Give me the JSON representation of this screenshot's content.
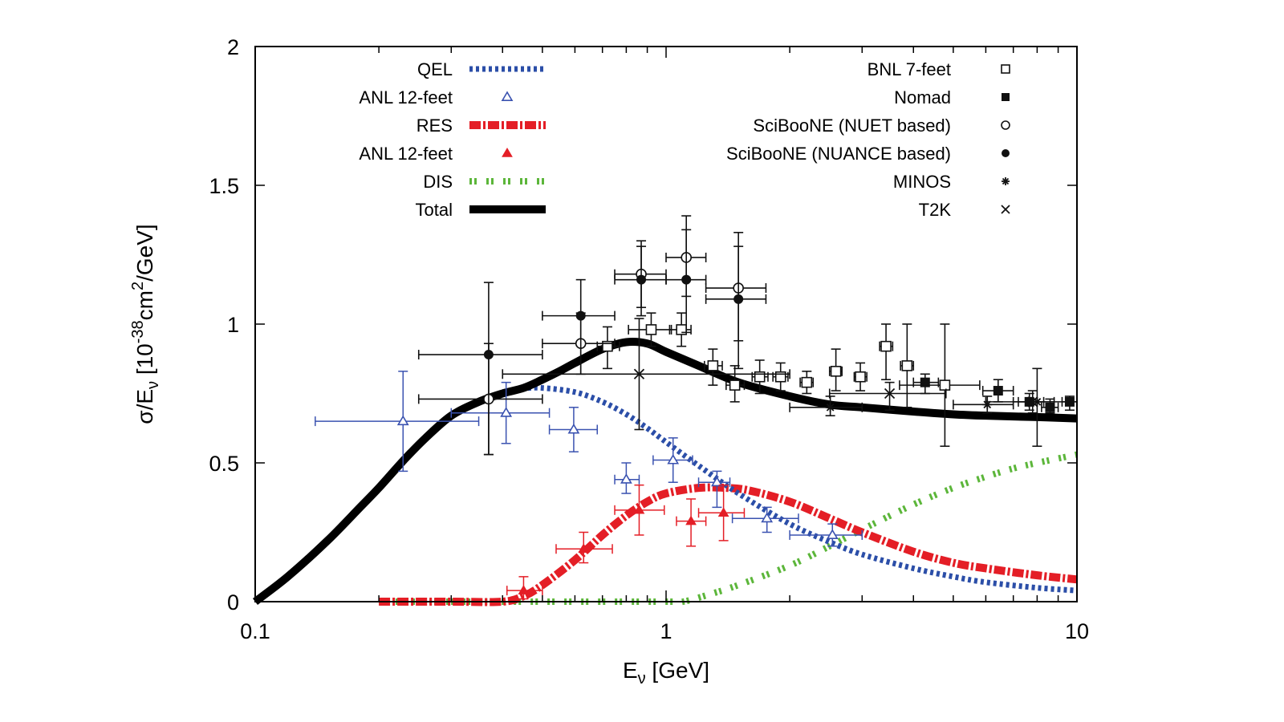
{
  "chart_data": {
    "type": "scatter",
    "title": "",
    "xlabel": "E_ν [GeV]",
    "xlabel_main": "E",
    "xlabel_sub": "ν",
    "xlabel_rest": " [GeV]",
    "ylabel": "σ/E_ν [10^-38 cm^2/GeV]",
    "ylabel_parts": {
      "sigma": "σ/E",
      "sub": "ν",
      "bracket": " [10",
      "exp": "-38",
      "cm": "cm",
      "cmexp": "2",
      "tail": "/GeV]"
    },
    "xscale": "log",
    "xlim": [
      0.1,
      10
    ],
    "ylim": [
      0,
      2
    ],
    "grid": false,
    "x_ticks": [
      {
        "value": 0.1,
        "label": "0.1"
      },
      {
        "value": 1,
        "label": "1"
      },
      {
        "value": 10,
        "label": "10"
      }
    ],
    "y_ticks": [
      {
        "value": 0,
        "label": "0"
      },
      {
        "value": 0.5,
        "label": "0.5"
      },
      {
        "value": 1,
        "label": "1"
      },
      {
        "value": 1.5,
        "label": "1.5"
      },
      {
        "value": 2,
        "label": "2"
      }
    ],
    "legend_left": {
      "placement": "top-left",
      "entries": [
        {
          "label": "QEL",
          "style": "blue-dotted-line"
        },
        {
          "label": "ANL 12-feet",
          "style": "blue-open-triangle"
        },
        {
          "label": "RES",
          "style": "red-dashdot-line"
        },
        {
          "label": "ANL 12-feet",
          "style": "red-filled-triangle"
        },
        {
          "label": "DIS",
          "style": "green-dashed-line"
        },
        {
          "label": "Total",
          "style": "black-solid-line"
        }
      ]
    },
    "legend_right": {
      "placement": "top-right",
      "entries": [
        {
          "label": "BNL 7-feet",
          "style": "open-square"
        },
        {
          "label": "Nomad",
          "style": "filled-square"
        },
        {
          "label": "SciBooNE (NUET based)",
          "style": "open-circle"
        },
        {
          "label": "SciBooNE (NUANCE based)",
          "style": "filled-circle"
        },
        {
          "label": "MINOS",
          "style": "asterisk"
        },
        {
          "label": "T2K",
          "style": "cross"
        }
      ]
    },
    "colors": {
      "qel": "#2b4ea8",
      "res": "#e41e26",
      "dis": "#5cb63a",
      "total": "#000000",
      "data_black": "#111111",
      "anl_blue": "#3a52b0",
      "anl_red": "#e41e26"
    },
    "curves": [
      {
        "name": "QEL",
        "x": [
          0.4,
          0.45,
          0.5,
          0.6,
          0.7,
          0.8,
          0.9,
          1.0,
          1.2,
          1.5,
          2.0,
          2.5,
          3.0,
          4.0,
          5.0,
          6.0,
          8.0,
          10.0
        ],
        "y": [
          0.755,
          0.768,
          0.77,
          0.755,
          0.72,
          0.675,
          0.625,
          0.575,
          0.49,
          0.39,
          0.28,
          0.215,
          0.17,
          0.12,
          0.09,
          0.07,
          0.05,
          0.04
        ]
      },
      {
        "name": "RES",
        "x": [
          0.2,
          0.3,
          0.4,
          0.45,
          0.5,
          0.6,
          0.7,
          0.8,
          0.9,
          1.0,
          1.2,
          1.4,
          1.6,
          2.0,
          2.5,
          3.0,
          4.0,
          5.0,
          6.0,
          8.0,
          10.0
        ],
        "y": [
          0,
          0,
          0,
          0.02,
          0.06,
          0.15,
          0.24,
          0.31,
          0.36,
          0.39,
          0.41,
          0.41,
          0.4,
          0.36,
          0.3,
          0.25,
          0.18,
          0.14,
          0.12,
          0.095,
          0.08
        ]
      },
      {
        "name": "DIS",
        "x": [
          0.2,
          0.5,
          1.0,
          1.1,
          1.3,
          1.5,
          2.0,
          2.5,
          3.0,
          4.0,
          5.0,
          6.0,
          7.0,
          8.0,
          10.0
        ],
        "y": [
          0,
          0,
          0,
          0,
          0.03,
          0.06,
          0.13,
          0.2,
          0.26,
          0.35,
          0.41,
          0.45,
          0.48,
          0.5,
          0.53
        ]
      },
      {
        "name": "Total",
        "x": [
          0.1,
          0.12,
          0.15,
          0.18,
          0.2,
          0.23,
          0.26,
          0.3,
          0.35,
          0.4,
          0.45,
          0.5,
          0.55,
          0.6,
          0.7,
          0.8,
          0.9,
          1.0,
          1.2,
          1.5,
          2.0,
          2.5,
          3.0,
          4.0,
          5.0,
          6.0,
          8.0,
          10.0
        ],
        "y": [
          0,
          0.09,
          0.22,
          0.34,
          0.41,
          0.51,
          0.59,
          0.67,
          0.72,
          0.75,
          0.77,
          0.8,
          0.83,
          0.86,
          0.91,
          0.935,
          0.93,
          0.9,
          0.85,
          0.79,
          0.74,
          0.71,
          0.7,
          0.685,
          0.675,
          0.67,
          0.665,
          0.66
        ]
      }
    ],
    "datasets": [
      {
        "name": "ANL 12-feet (QEL)",
        "marker": "open-triangle",
        "color": "#3a52b0",
        "points": [
          {
            "x": 0.229,
            "y": 0.65,
            "xlo": 0.14,
            "xhi": 0.35,
            "ylo": 0.47,
            "yhi": 0.83
          },
          {
            "x": 0.408,
            "y": 0.68,
            "xlo": 0.3,
            "xhi": 0.52,
            "ylo": 0.57,
            "yhi": 0.79
          },
          {
            "x": 0.596,
            "y": 0.62,
            "xlo": 0.52,
            "xhi": 0.68,
            "ylo": 0.54,
            "yhi": 0.7
          },
          {
            "x": 0.8,
            "y": 0.44,
            "xlo": 0.75,
            "xhi": 0.86,
            "ylo": 0.39,
            "yhi": 0.5
          },
          {
            "x": 1.04,
            "y": 0.51,
            "xlo": 0.93,
            "xhi": 1.16,
            "ylo": 0.43,
            "yhi": 0.59
          },
          {
            "x": 1.33,
            "y": 0.43,
            "xlo": 1.2,
            "xhi": 1.43,
            "ylo": 0.34,
            "yhi": 0.47
          },
          {
            "x": 1.76,
            "y": 0.3,
            "xlo": 1.45,
            "xhi": 2.1,
            "ylo": 0.25,
            "yhi": 0.34
          },
          {
            "x": 2.54,
            "y": 0.24,
            "xlo": 2.0,
            "xhi": 3.0,
            "ylo": 0.2,
            "yhi": 0.28
          }
        ]
      },
      {
        "name": "ANL 12-feet (RES)",
        "marker": "filled-triangle",
        "color": "#e41e26",
        "points": [
          {
            "x": 0.45,
            "y": 0.04,
            "xlo": 0.41,
            "xhi": 0.5,
            "ylo": 0.01,
            "yhi": 0.09
          },
          {
            "x": 0.63,
            "y": 0.19,
            "xlo": 0.54,
            "xhi": 0.74,
            "ylo": 0.14,
            "yhi": 0.25
          },
          {
            "x": 0.86,
            "y": 0.33,
            "xlo": 0.75,
            "xhi": 0.99,
            "ylo": 0.24,
            "yhi": 0.42
          },
          {
            "x": 1.15,
            "y": 0.29,
            "xlo": 1.06,
            "xhi": 1.25,
            "ylo": 0.2,
            "yhi": 0.37
          },
          {
            "x": 1.38,
            "y": 0.32,
            "xlo": 1.2,
            "xhi": 1.55,
            "ylo": 0.22,
            "yhi": 0.42
          }
        ]
      },
      {
        "name": "BNL 7-feet",
        "marker": "open-square",
        "color": "#111111",
        "points": [
          {
            "x": 0.72,
            "y": 0.92,
            "xlo": 0.68,
            "xhi": 0.77,
            "ylo": 0.84,
            "yhi": 0.99
          },
          {
            "x": 0.92,
            "y": 0.98,
            "xlo": 0.81,
            "xhi": 1.03,
            "ylo": 0.92,
            "yhi": 1.04
          },
          {
            "x": 1.09,
            "y": 0.98,
            "xlo": 1.02,
            "xhi": 1.15,
            "ylo": 0.92,
            "yhi": 1.04
          },
          {
            "x": 1.3,
            "y": 0.85,
            "xlo": 1.24,
            "xhi": 1.37,
            "ylo": 0.78,
            "yhi": 0.91
          },
          {
            "x": 1.47,
            "y": 0.78,
            "xlo": 1.4,
            "xhi": 1.55,
            "ylo": 0.72,
            "yhi": 0.85
          },
          {
            "x": 1.69,
            "y": 0.81,
            "xlo": 1.62,
            "xhi": 1.77,
            "ylo": 0.75,
            "yhi": 0.87
          },
          {
            "x": 1.9,
            "y": 0.81,
            "xlo": 1.82,
            "xhi": 1.98,
            "ylo": 0.76,
            "yhi": 0.86
          },
          {
            "x": 2.2,
            "y": 0.79,
            "xlo": 2.12,
            "xhi": 2.28,
            "ylo": 0.75,
            "yhi": 0.83
          },
          {
            "x": 2.59,
            "y": 0.83,
            "xlo": 2.5,
            "xhi": 2.68,
            "ylo": 0.76,
            "yhi": 0.91
          },
          {
            "x": 2.97,
            "y": 0.81,
            "xlo": 2.87,
            "xhi": 3.08,
            "ylo": 0.76,
            "yhi": 0.86
          },
          {
            "x": 3.43,
            "y": 0.92,
            "xlo": 3.31,
            "xhi": 3.56,
            "ylo": 0.8,
            "yhi": 1.0
          },
          {
            "x": 3.86,
            "y": 0.85,
            "xlo": 3.72,
            "xhi": 4.0,
            "ylo": 0.7,
            "yhi": 1.0
          },
          {
            "x": 4.77,
            "y": 0.78,
            "xlo": 3.7,
            "xhi": 5.8,
            "ylo": 0.56,
            "yhi": 1.0
          }
        ]
      },
      {
        "name": "Nomad",
        "marker": "filled-square",
        "color": "#111111",
        "points": [
          {
            "x": 4.27,
            "y": 0.79,
            "xlo": 4.0,
            "xhi": 4.6,
            "ylo": 0.75,
            "yhi": 0.82
          },
          {
            "x": 6.43,
            "y": 0.76,
            "xlo": 5.9,
            "xhi": 7.0,
            "ylo": 0.72,
            "yhi": 0.8
          },
          {
            "x": 7.66,
            "y": 0.72,
            "xlo": 7.0,
            "xhi": 8.3,
            "ylo": 0.69,
            "yhi": 0.75
          },
          {
            "x": 8.6,
            "y": 0.7,
            "xlo": 8.2,
            "xhi": 9.0,
            "ylo": 0.68,
            "yhi": 0.73
          },
          {
            "x": 9.6,
            "y": 0.72,
            "xlo": 9.2,
            "xhi": 10.0,
            "ylo": 0.69,
            "yhi": 0.74
          }
        ]
      },
      {
        "name": "SciBooNE (NUET based)",
        "marker": "open-circle",
        "color": "#111111",
        "points": [
          {
            "x": 0.37,
            "y": 0.73,
            "xlo": 0.25,
            "xhi": 0.5,
            "ylo": 0.53,
            "yhi": 0.93
          },
          {
            "x": 0.62,
            "y": 0.93,
            "xlo": 0.5,
            "xhi": 0.75,
            "ylo": 0.82,
            "yhi": 1.04
          },
          {
            "x": 0.87,
            "y": 1.18,
            "xlo": 0.75,
            "xhi": 1.0,
            "ylo": 1.06,
            "yhi": 1.3
          },
          {
            "x": 1.12,
            "y": 1.24,
            "xlo": 1.0,
            "xhi": 1.25,
            "ylo": 1.1,
            "yhi": 1.39
          },
          {
            "x": 1.5,
            "y": 1.13,
            "xlo": 1.25,
            "xhi": 1.75,
            "ylo": 0.94,
            "yhi": 1.33
          }
        ]
      },
      {
        "name": "SciBooNE (NUANCE based)",
        "marker": "filled-circle",
        "color": "#111111",
        "points": [
          {
            "x": 0.37,
            "y": 0.89,
            "xlo": 0.25,
            "xhi": 0.5,
            "ylo": 0.53,
            "yhi": 1.15
          },
          {
            "x": 0.62,
            "y": 1.03,
            "xlo": 0.5,
            "xhi": 0.75,
            "ylo": 0.82,
            "yhi": 1.16
          },
          {
            "x": 0.87,
            "y": 1.16,
            "xlo": 0.75,
            "xhi": 1.0,
            "ylo": 1.03,
            "yhi": 1.28
          },
          {
            "x": 1.12,
            "y": 1.16,
            "xlo": 1.0,
            "xhi": 1.25,
            "ylo": 0.97,
            "yhi": 1.34
          },
          {
            "x": 1.5,
            "y": 1.09,
            "xlo": 1.25,
            "xhi": 1.75,
            "ylo": 0.84,
            "yhi": 1.28
          }
        ]
      },
      {
        "name": "MINOS",
        "marker": "asterisk",
        "color": "#111111",
        "points": [
          {
            "x": 2.51,
            "y": 0.7,
            "xlo": 2.0,
            "xhi": 3.0,
            "ylo": 0.67,
            "yhi": 0.74
          },
          {
            "x": 6.05,
            "y": 0.71,
            "xlo": 5.0,
            "xhi": 7.0,
            "ylo": 0.68,
            "yhi": 0.74
          },
          {
            "x": 8.0,
            "y": 0.72,
            "xlo": 7.2,
            "xhi": 8.8,
            "ylo": 0.56,
            "yhi": 0.84
          }
        ]
      },
      {
        "name": "T2K",
        "marker": "cross",
        "color": "#111111",
        "points": [
          {
            "x": 0.86,
            "y": 0.82,
            "xlo": 0.4,
            "xhi": 2.0,
            "ylo": 0.62,
            "yhi": 1.02
          },
          {
            "x": 3.5,
            "y": 0.75,
            "xlo": 2.5,
            "xhi": 4.8,
            "ylo": 0.69,
            "yhi": 0.79
          },
          {
            "x": 7.8,
            "y": 0.72,
            "xlo": 6.0,
            "xhi": 10.0,
            "ylo": 0.68,
            "yhi": 0.76
          }
        ]
      }
    ]
  }
}
